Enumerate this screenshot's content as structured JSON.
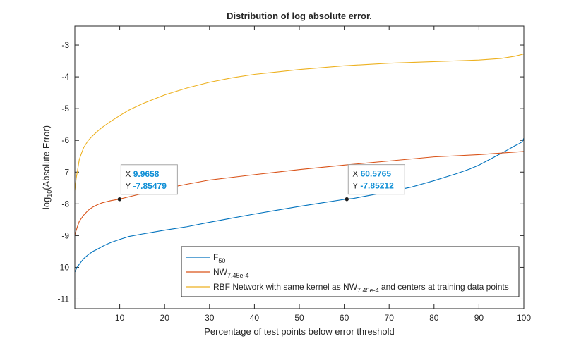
{
  "chart_data": {
    "type": "line",
    "title": "Distribution of log absolute error.",
    "xlabel": "Percentage of test points below error threshold",
    "ylabel": {
      "prefix": "log",
      "sub": "10",
      "suffix": "(Absolute Error)"
    },
    "xlim": [
      0,
      100
    ],
    "ylim": [
      -11.3,
      -2.4
    ],
    "xticks": [
      10,
      20,
      30,
      40,
      50,
      60,
      70,
      80,
      90,
      100
    ],
    "yticks": [
      -11,
      -10,
      -9,
      -8,
      -7,
      -6,
      -5,
      -4,
      -3
    ],
    "grid": false,
    "legend_position": "bottom-right",
    "series": [
      {
        "name": "F_50",
        "legend": {
          "main": "F",
          "sub": "50",
          "tail": ""
        },
        "color": "#0072bd",
        "x": [
          0,
          0.5,
          1,
          2,
          3,
          4,
          5,
          6,
          7,
          8,
          10,
          12,
          15,
          20,
          25,
          30,
          35,
          40,
          45,
          50,
          55,
          60,
          60.58,
          62,
          65,
          70,
          75,
          78,
          80,
          82,
          85,
          88,
          90,
          92,
          94,
          96,
          98,
          99,
          99.6,
          100
        ],
        "y": [
          -10.15,
          -10.0,
          -9.9,
          -9.72,
          -9.6,
          -9.5,
          -9.43,
          -9.35,
          -9.28,
          -9.22,
          -9.12,
          -9.03,
          -8.95,
          -8.83,
          -8.72,
          -8.58,
          -8.45,
          -8.32,
          -8.2,
          -8.08,
          -7.97,
          -7.86,
          -7.85,
          -7.83,
          -7.75,
          -7.62,
          -7.47,
          -7.35,
          -7.27,
          -7.18,
          -7.05,
          -6.9,
          -6.78,
          -6.63,
          -6.48,
          -6.33,
          -6.17,
          -6.1,
          -6.05,
          -5.93
        ]
      },
      {
        "name": "NW_7.45e-4",
        "legend": {
          "main": "NW",
          "sub": "7.45e-4",
          "tail": ""
        },
        "color": "#d95319",
        "x": [
          0,
          0.5,
          1,
          2,
          3,
          4,
          5,
          6,
          8,
          9.97,
          12,
          15,
          20,
          25,
          30,
          40,
          50,
          60,
          70,
          80,
          90,
          100
        ],
        "y": [
          -8.98,
          -8.75,
          -8.55,
          -8.35,
          -8.2,
          -8.1,
          -8.03,
          -7.97,
          -7.9,
          -7.85,
          -7.78,
          -7.68,
          -7.52,
          -7.38,
          -7.25,
          -7.08,
          -6.92,
          -6.78,
          -6.65,
          -6.52,
          -6.45,
          -6.35
        ]
      },
      {
        "name": "RBF Network with same kernel as NW_7.45e-4 and centers at training data points",
        "legend": {
          "main": "RBF Network with same kernel as NW",
          "sub": "7.45e-4",
          "tail": " and centers at training data points"
        },
        "color": "#edb120",
        "x": [
          0,
          0.3,
          0.6,
          1,
          1.5,
          2,
          3,
          4,
          5,
          6,
          8,
          10,
          12,
          15,
          18,
          20,
          25,
          30,
          35,
          40,
          50,
          60,
          70,
          80,
          90,
          95,
          98,
          100
        ],
        "y": [
          -7.58,
          -7.2,
          -6.95,
          -6.6,
          -6.4,
          -6.22,
          -6.0,
          -5.85,
          -5.72,
          -5.6,
          -5.4,
          -5.22,
          -5.05,
          -4.85,
          -4.68,
          -4.57,
          -4.35,
          -4.17,
          -4.03,
          -3.92,
          -3.77,
          -3.65,
          -3.57,
          -3.52,
          -3.47,
          -3.42,
          -3.35,
          -3.28
        ]
      }
    ],
    "datatips": [
      {
        "x_label": "X",
        "x_value": "9.9658",
        "y_label": "Y",
        "y_value": "-7.85479",
        "x": 9.9658,
        "y": -7.85479
      },
      {
        "x_label": "X",
        "x_value": "60.5765",
        "y_label": "Y",
        "y_value": "-7.85212",
        "x": 60.5765,
        "y": -7.85212
      }
    ]
  }
}
